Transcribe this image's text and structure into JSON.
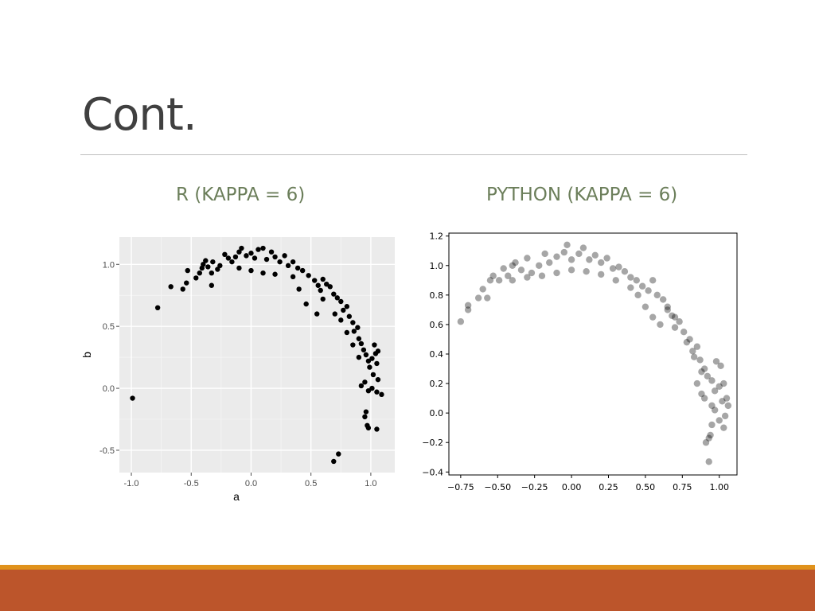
{
  "slide": {
    "title": "Cont.",
    "colors": {
      "footer_orange": "#e0921c",
      "footer_rust": "#bc552b",
      "subtitle_green": "#6b7e5a"
    }
  },
  "chart_data": [
    {
      "type": "scatter",
      "title": "R (KAPPA = 6)",
      "xlabel": "a",
      "ylabel": "b",
      "xlim": [
        -1.1,
        1.2
      ],
      "ylim": [
        -0.68,
        1.22
      ],
      "xticks": [
        -1.0,
        -0.5,
        0.0,
        0.5,
        1.0
      ],
      "xtick_labels": [
        "-1.0",
        "-0.5",
        "0.0",
        "0.5",
        "1.0"
      ],
      "yticks": [
        -0.5,
        0.0,
        0.5,
        1.0
      ],
      "ytick_labels": [
        "-0.5",
        "0.0",
        "0.5",
        "1.0"
      ],
      "grid": true,
      "style": "ggplot",
      "point_color": "#000000",
      "points": [
        [
          -0.99,
          -0.08
        ],
        [
          -0.78,
          0.65
        ],
        [
          -0.67,
          0.82
        ],
        [
          -0.57,
          0.8
        ],
        [
          -0.54,
          0.85
        ],
        [
          -0.53,
          0.95
        ],
        [
          -0.46,
          0.89
        ],
        [
          -0.43,
          0.93
        ],
        [
          -0.41,
          0.97
        ],
        [
          -0.4,
          1.0
        ],
        [
          -0.38,
          1.03
        ],
        [
          -0.36,
          0.98
        ],
        [
          -0.33,
          0.93
        ],
        [
          -0.32,
          1.02
        ],
        [
          -0.33,
          0.83
        ],
        [
          -0.28,
          0.96
        ],
        [
          -0.26,
          0.99
        ],
        [
          -0.22,
          1.08
        ],
        [
          -0.19,
          1.05
        ],
        [
          -0.16,
          1.02
        ],
        [
          -0.13,
          1.06
        ],
        [
          -0.1,
          1.1
        ],
        [
          -0.08,
          1.13
        ],
        [
          -0.04,
          1.07
        ],
        [
          0.0,
          1.09
        ],
        [
          0.03,
          1.05
        ],
        [
          0.06,
          1.12
        ],
        [
          0.1,
          1.13
        ],
        [
          0.13,
          1.04
        ],
        [
          0.17,
          1.1
        ],
        [
          0.2,
          1.06
        ],
        [
          0.24,
          1.02
        ],
        [
          0.28,
          1.07
        ],
        [
          0.31,
          0.99
        ],
        [
          0.35,
          1.02
        ],
        [
          0.39,
          0.97
        ],
        [
          0.43,
          0.95
        ],
        [
          0.48,
          0.91
        ],
        [
          0.53,
          0.87
        ],
        [
          0.56,
          0.83
        ],
        [
          0.58,
          0.79
        ],
        [
          0.6,
          0.88
        ],
        [
          0.63,
          0.84
        ],
        [
          0.66,
          0.82
        ],
        [
          0.69,
          0.76
        ],
        [
          0.72,
          0.73
        ],
        [
          0.75,
          0.7
        ],
        [
          0.77,
          0.63
        ],
        [
          0.8,
          0.66
        ],
        [
          0.82,
          0.58
        ],
        [
          0.85,
          0.53
        ],
        [
          0.86,
          0.46
        ],
        [
          0.89,
          0.49
        ],
        [
          0.9,
          0.4
        ],
        [
          0.92,
          0.36
        ],
        [
          0.94,
          0.31
        ],
        [
          0.96,
          0.27
        ],
        [
          0.98,
          0.22
        ],
        [
          0.99,
          0.17
        ],
        [
          1.01,
          0.24
        ],
        [
          1.04,
          0.28
        ],
        [
          1.05,
          0.2
        ],
        [
          1.02,
          0.11
        ],
        [
          1.06,
          0.07
        ],
        [
          1.09,
          -0.05
        ],
        [
          1.05,
          -0.03
        ],
        [
          1.01,
          0.0
        ],
        [
          0.98,
          -0.02
        ],
        [
          0.95,
          0.05
        ],
        [
          0.92,
          0.02
        ],
        [
          0.96,
          -0.19
        ],
        [
          0.95,
          -0.23
        ],
        [
          0.97,
          -0.3
        ],
        [
          0.98,
          -0.32
        ],
        [
          1.05,
          -0.33
        ],
        [
          0.73,
          -0.53
        ],
        [
          0.69,
          -0.59
        ],
        [
          0.55,
          0.6
        ],
        [
          0.46,
          0.68
        ],
        [
          0.4,
          0.8
        ],
        [
          0.35,
          0.9
        ],
        [
          0.2,
          0.92
        ],
        [
          0.1,
          0.93
        ],
        [
          0.0,
          0.95
        ],
        [
          -0.1,
          0.97
        ],
        [
          0.6,
          0.72
        ],
        [
          0.7,
          0.6
        ],
        [
          0.75,
          0.55
        ],
        [
          0.8,
          0.45
        ],
        [
          0.85,
          0.35
        ],
        [
          0.9,
          0.25
        ],
        [
          1.03,
          0.35
        ],
        [
          1.06,
          0.3
        ]
      ]
    },
    {
      "type": "scatter",
      "title": "PYTHON (KAPPA = 6)",
      "xlim": [
        -0.83,
        1.12
      ],
      "ylim": [
        -0.42,
        1.22
      ],
      "xticks": [
        -0.75,
        -0.5,
        -0.25,
        0.0,
        0.25,
        0.5,
        0.75,
        1.0
      ],
      "xtick_labels": [
        "−0.75",
        "−0.50",
        "−0.25",
        "0.00",
        "0.25",
        "0.50",
        "0.75",
        "1.00"
      ],
      "yticks": [
        -0.4,
        -0.2,
        0.0,
        0.2,
        0.4,
        0.6,
        0.8,
        1.0,
        1.2
      ],
      "ytick_labels": [
        "−0.4",
        "−0.2",
        "0.0",
        "0.2",
        "0.4",
        "0.6",
        "0.8",
        "1.0",
        "1.2"
      ],
      "grid": false,
      "style": "matplotlib",
      "point_color": "#000000",
      "point_alpha": 0.35,
      "points": [
        [
          -0.75,
          0.62
        ],
        [
          -0.7,
          0.7
        ],
        [
          -0.7,
          0.73
        ],
        [
          -0.63,
          0.78
        ],
        [
          -0.6,
          0.84
        ],
        [
          -0.57,
          0.78
        ],
        [
          -0.55,
          0.9
        ],
        [
          -0.53,
          0.93
        ],
        [
          -0.49,
          0.9
        ],
        [
          -0.46,
          0.98
        ],
        [
          -0.43,
          0.93
        ],
        [
          -0.4,
          1.0
        ],
        [
          -0.38,
          1.02
        ],
        [
          -0.34,
          0.97
        ],
        [
          -0.3,
          1.05
        ],
        [
          -0.27,
          0.95
        ],
        [
          -0.22,
          1.0
        ],
        [
          -0.18,
          1.08
        ],
        [
          -0.15,
          1.02
        ],
        [
          -0.1,
          1.06
        ],
        [
          -0.05,
          1.09
        ],
        [
          -0.03,
          1.14
        ],
        [
          0.0,
          1.04
        ],
        [
          0.05,
          1.08
        ],
        [
          0.08,
          1.12
        ],
        [
          0.12,
          1.04
        ],
        [
          0.16,
          1.07
        ],
        [
          0.2,
          1.02
        ],
        [
          0.24,
          1.05
        ],
        [
          0.28,
          0.98
        ],
        [
          0.32,
          0.99
        ],
        [
          0.36,
          0.96
        ],
        [
          0.4,
          0.92
        ],
        [
          0.44,
          0.9
        ],
        [
          0.48,
          0.86
        ],
        [
          0.52,
          0.83
        ],
        [
          0.55,
          0.9
        ],
        [
          0.58,
          0.8
        ],
        [
          0.62,
          0.77
        ],
        [
          0.65,
          0.72
        ],
        [
          0.68,
          0.66
        ],
        [
          0.7,
          0.58
        ],
        [
          0.73,
          0.62
        ],
        [
          0.76,
          0.55
        ],
        [
          0.8,
          0.5
        ],
        [
          0.82,
          0.42
        ],
        [
          0.85,
          0.45
        ],
        [
          0.87,
          0.36
        ],
        [
          0.9,
          0.3
        ],
        [
          0.92,
          0.25
        ],
        [
          0.95,
          0.22
        ],
        [
          0.97,
          0.15
        ],
        [
          1.0,
          0.18
        ],
        [
          1.03,
          0.2
        ],
        [
          1.05,
          0.1
        ],
        [
          1.06,
          0.05
        ],
        [
          1.04,
          -0.02
        ],
        [
          1.03,
          -0.1
        ],
        [
          1.0,
          -0.05
        ],
        [
          0.97,
          0.02
        ],
        [
          0.95,
          -0.08
        ],
        [
          0.93,
          -0.17
        ],
        [
          0.91,
          -0.2
        ],
        [
          0.94,
          -0.15
        ],
        [
          0.93,
          -0.33
        ],
        [
          0.88,
          0.13
        ],
        [
          0.85,
          0.2
        ],
        [
          0.98,
          0.35
        ],
        [
          1.01,
          0.32
        ],
        [
          0.6,
          0.6
        ],
        [
          0.55,
          0.65
        ],
        [
          0.5,
          0.72
        ],
        [
          0.45,
          0.8
        ],
        [
          0.4,
          0.85
        ],
        [
          0.3,
          0.9
        ],
        [
          0.2,
          0.94
        ],
        [
          0.1,
          0.96
        ],
        [
          0.0,
          0.97
        ],
        [
          -0.1,
          0.95
        ],
        [
          -0.2,
          0.93
        ],
        [
          -0.3,
          0.92
        ],
        [
          -0.4,
          0.9
        ],
        [
          0.65,
          0.7
        ],
        [
          0.7,
          0.65
        ],
        [
          0.78,
          0.48
        ],
        [
          0.83,
          0.38
        ],
        [
          0.88,
          0.28
        ],
        [
          0.9,
          0.1
        ],
        [
          0.95,
          0.05
        ],
        [
          1.02,
          0.08
        ]
      ]
    }
  ]
}
